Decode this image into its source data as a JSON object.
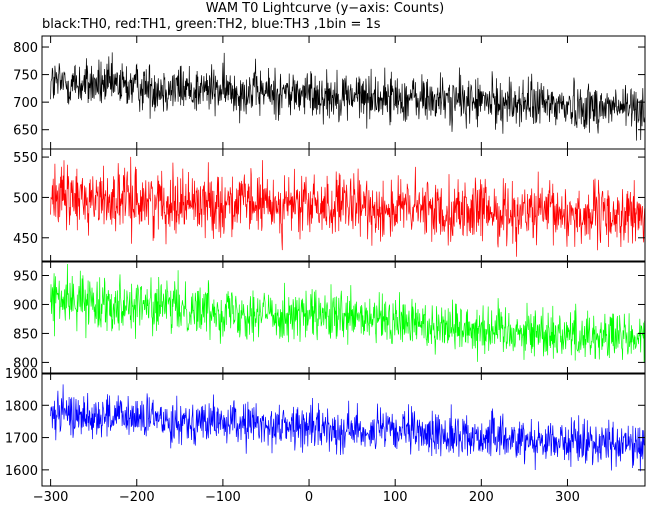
{
  "chart_data": {
    "type": "line",
    "title": "WAM T0 Lightcurve (y−axis: Counts)",
    "subtitle": "black:TH0, red:TH1, green:TH2, blue:TH3 ,1bin = 1s",
    "xlim": [
      -310,
      390
    ],
    "xticks": [
      -300,
      -200,
      -100,
      0,
      100,
      200,
      300
    ],
    "xtick_labels": [
      "−300",
      "−200",
      "−100",
      "0",
      "100",
      "200",
      "300"
    ],
    "grid": false,
    "panels": [
      {
        "series": "TH0",
        "color": "#000000",
        "ylim": [
          615,
          820
        ],
        "yticks": [
          650,
          700,
          750,
          800
        ],
        "ytick_labels": [
          "650",
          "700",
          "750",
          "800"
        ],
        "trend": {
          "x": [
            -300,
            390
          ],
          "y": [
            735,
            688
          ]
        },
        "noise_sd": 22
      },
      {
        "series": "TH1",
        "color": "#ff0000",
        "ylim": [
          420,
          560
        ],
        "yticks": [
          450,
          500,
          550
        ],
        "ytick_labels": [
          "450",
          "500",
          "550"
        ],
        "trend": {
          "x": [
            -300,
            390
          ],
          "y": [
            500,
            476
          ]
        },
        "noise_sd": 19
      },
      {
        "series": "TH2",
        "color": "#00ff00",
        "ylim": [
          780,
          975
        ],
        "yticks": [
          800,
          850,
          900,
          950
        ],
        "ytick_labels": [
          "800",
          "850",
          "900",
          "950"
        ],
        "trend": {
          "x": [
            -300,
            390
          ],
          "y": [
            910,
            840
          ]
        },
        "noise_sd": 22
      },
      {
        "series": "TH3",
        "color": "#0000ff",
        "ylim": [
          1550,
          1900
        ],
        "yticks": [
          1600,
          1700,
          1800,
          1900
        ],
        "ytick_labels": [
          "1600",
          "1700",
          "1800",
          "1900"
        ],
        "trend": {
          "x": [
            -300,
            390
          ],
          "y": [
            1775,
            1675
          ]
        },
        "noise_sd": 33
      }
    ]
  }
}
